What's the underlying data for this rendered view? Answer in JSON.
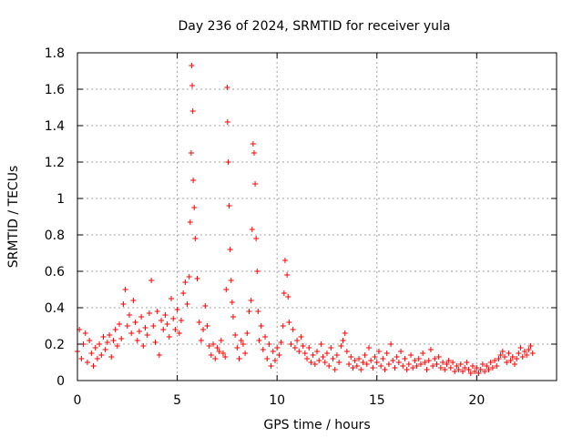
{
  "chart_data": {
    "type": "scatter",
    "title": "Day 236 of 2024, SRMTID for receiver yula",
    "xlabel": "GPS time / hours",
    "ylabel": "SRMTID / TECUs",
    "xlim": [
      0,
      24
    ],
    "ylim": [
      0,
      1.8
    ],
    "xticks": [
      0,
      5,
      10,
      15,
      20
    ],
    "xtick_labels": [
      "0",
      "5",
      "10",
      "15",
      "20"
    ],
    "yticks": [
      0,
      0.2,
      0.4,
      0.6,
      0.8,
      1.0,
      1.2,
      1.4,
      1.6,
      1.8
    ],
    "ytick_labels": [
      "0",
      "0.2",
      "0.4",
      "0.6",
      "0.8",
      "1",
      "1.2",
      "1.4",
      "1.6",
      "1.8"
    ],
    "grid": true,
    "marker": "+",
    "color": "#ff0000",
    "series": [
      {
        "name": "SRMTID",
        "points": [
          [
            0.0,
            0.16
          ],
          [
            0.1,
            0.28
          ],
          [
            0.2,
            0.12
          ],
          [
            0.3,
            0.2
          ],
          [
            0.4,
            0.26
          ],
          [
            0.5,
            0.1
          ],
          [
            0.6,
            0.22
          ],
          [
            0.7,
            0.15
          ],
          [
            0.8,
            0.08
          ],
          [
            0.9,
            0.18
          ],
          [
            1.0,
            0.12
          ],
          [
            1.1,
            0.2
          ],
          [
            1.2,
            0.14
          ],
          [
            1.3,
            0.24
          ],
          [
            1.4,
            0.17
          ],
          [
            1.5,
            0.21
          ],
          [
            1.6,
            0.25
          ],
          [
            1.7,
            0.13
          ],
          [
            1.8,
            0.22
          ],
          [
            1.9,
            0.28
          ],
          [
            2.0,
            0.19
          ],
          [
            2.1,
            0.31
          ],
          [
            2.2,
            0.23
          ],
          [
            2.3,
            0.42
          ],
          [
            2.4,
            0.5
          ],
          [
            2.5,
            0.3
          ],
          [
            2.6,
            0.36
          ],
          [
            2.7,
            0.26
          ],
          [
            2.8,
            0.44
          ],
          [
            2.9,
            0.32
          ],
          [
            3.0,
            0.22
          ],
          [
            3.1,
            0.27
          ],
          [
            3.2,
            0.35
          ],
          [
            3.3,
            0.19
          ],
          [
            3.4,
            0.29
          ],
          [
            3.5,
            0.25
          ],
          [
            3.6,
            0.37
          ],
          [
            3.7,
            0.55
          ],
          [
            3.8,
            0.3
          ],
          [
            3.9,
            0.21
          ],
          [
            4.0,
            0.38
          ],
          [
            4.1,
            0.14
          ],
          [
            4.2,
            0.33
          ],
          [
            4.3,
            0.28
          ],
          [
            4.4,
            0.36
          ],
          [
            4.5,
            0.31
          ],
          [
            4.6,
            0.24
          ],
          [
            4.7,
            0.45
          ],
          [
            4.8,
            0.34
          ],
          [
            4.9,
            0.28
          ],
          [
            5.0,
            0.39
          ],
          [
            5.1,
            0.26
          ],
          [
            5.2,
            0.33
          ],
          [
            5.3,
            0.48
          ],
          [
            5.4,
            0.54
          ],
          [
            5.5,
            0.42
          ],
          [
            5.6,
            0.57
          ],
          [
            5.65,
            0.87
          ],
          [
            5.7,
            1.25
          ],
          [
            5.72,
            1.73
          ],
          [
            5.75,
            1.62
          ],
          [
            5.78,
            1.48
          ],
          [
            5.8,
            1.1
          ],
          [
            5.85,
            0.95
          ],
          [
            5.9,
            0.78
          ],
          [
            6.0,
            0.56
          ],
          [
            6.1,
            0.32
          ],
          [
            6.2,
            0.22
          ],
          [
            6.3,
            0.28
          ],
          [
            6.4,
            0.41
          ],
          [
            6.5,
            0.3
          ],
          [
            6.6,
            0.19
          ],
          [
            6.7,
            0.14
          ],
          [
            6.8,
            0.2
          ],
          [
            6.9,
            0.12
          ],
          [
            7.0,
            0.18
          ],
          [
            7.1,
            0.16
          ],
          [
            7.2,
            0.22
          ],
          [
            7.3,
            0.15
          ],
          [
            7.4,
            0.13
          ],
          [
            7.45,
            0.5
          ],
          [
            7.5,
            1.61
          ],
          [
            7.52,
            1.42
          ],
          [
            7.55,
            1.2
          ],
          [
            7.6,
            0.96
          ],
          [
            7.65,
            0.72
          ],
          [
            7.7,
            0.55
          ],
          [
            7.75,
            0.43
          ],
          [
            7.8,
            0.35
          ],
          [
            7.9,
            0.25
          ],
          [
            8.0,
            0.18
          ],
          [
            8.1,
            0.12
          ],
          [
            8.2,
            0.22
          ],
          [
            8.3,
            0.2
          ],
          [
            8.4,
            0.15
          ],
          [
            8.5,
            0.26
          ],
          [
            8.6,
            0.38
          ],
          [
            8.7,
            0.44
          ],
          [
            8.75,
            0.83
          ],
          [
            8.8,
            1.3
          ],
          [
            8.85,
            1.25
          ],
          [
            8.9,
            1.08
          ],
          [
            8.95,
            0.78
          ],
          [
            9.0,
            0.6
          ],
          [
            9.05,
            0.38
          ],
          [
            9.1,
            0.22
          ],
          [
            9.2,
            0.3
          ],
          [
            9.3,
            0.17
          ],
          [
            9.4,
            0.24
          ],
          [
            9.5,
            0.12
          ],
          [
            9.6,
            0.2
          ],
          [
            9.7,
            0.08
          ],
          [
            9.8,
            0.16
          ],
          [
            9.9,
            0.11
          ],
          [
            10.0,
            0.18
          ],
          [
            10.1,
            0.14
          ],
          [
            10.2,
            0.21
          ],
          [
            10.3,
            0.3
          ],
          [
            10.35,
            0.48
          ],
          [
            10.4,
            0.66
          ],
          [
            10.5,
            0.58
          ],
          [
            10.55,
            0.46
          ],
          [
            10.6,
            0.32
          ],
          [
            10.7,
            0.2
          ],
          [
            10.8,
            0.28
          ],
          [
            10.9,
            0.18
          ],
          [
            11.0,
            0.22
          ],
          [
            11.1,
            0.16
          ],
          [
            11.2,
            0.24
          ],
          [
            11.3,
            0.19
          ],
          [
            11.4,
            0.15
          ],
          [
            11.5,
            0.12
          ],
          [
            11.6,
            0.18
          ],
          [
            11.7,
            0.1
          ],
          [
            11.8,
            0.14
          ],
          [
            11.9,
            0.09
          ],
          [
            12.0,
            0.16
          ],
          [
            12.1,
            0.11
          ],
          [
            12.2,
            0.2
          ],
          [
            12.3,
            0.13
          ],
          [
            12.4,
            0.1
          ],
          [
            12.5,
            0.15
          ],
          [
            12.6,
            0.08
          ],
          [
            12.7,
            0.18
          ],
          [
            12.8,
            0.12
          ],
          [
            12.9,
            0.06
          ],
          [
            13.0,
            0.14
          ],
          [
            13.1,
            0.1
          ],
          [
            13.2,
            0.19
          ],
          [
            13.3,
            0.22
          ],
          [
            13.4,
            0.26
          ],
          [
            13.5,
            0.16
          ],
          [
            13.6,
            0.09
          ],
          [
            13.7,
            0.13
          ],
          [
            13.8,
            0.07
          ],
          [
            13.9,
            0.11
          ],
          [
            14.0,
            0.08
          ],
          [
            14.1,
            0.12
          ],
          [
            14.2,
            0.06
          ],
          [
            14.3,
            0.1
          ],
          [
            14.4,
            0.14
          ],
          [
            14.5,
            0.09
          ],
          [
            14.6,
            0.18
          ],
          [
            14.7,
            0.11
          ],
          [
            14.8,
            0.07
          ],
          [
            14.9,
            0.13
          ],
          [
            15.0,
            0.1
          ],
          [
            15.1,
            0.16
          ],
          [
            15.2,
            0.08
          ],
          [
            15.3,
            0.12
          ],
          [
            15.4,
            0.06
          ],
          [
            15.5,
            0.15
          ],
          [
            15.6,
            0.09
          ],
          [
            15.7,
            0.2
          ],
          [
            15.8,
            0.11
          ],
          [
            15.9,
            0.07
          ],
          [
            16.0,
            0.13
          ],
          [
            16.1,
            0.1
          ],
          [
            16.2,
            0.16
          ],
          [
            16.3,
            0.08
          ],
          [
            16.4,
            0.12
          ],
          [
            16.5,
            0.06
          ],
          [
            16.6,
            0.09
          ],
          [
            16.7,
            0.14
          ],
          [
            16.8,
            0.07
          ],
          [
            16.9,
            0.11
          ],
          [
            17.0,
            0.08
          ],
          [
            17.1,
            0.12
          ],
          [
            17.2,
            0.09
          ],
          [
            17.3,
            0.15
          ],
          [
            17.4,
            0.1
          ],
          [
            17.5,
            0.06
          ],
          [
            17.6,
            0.11
          ],
          [
            17.7,
            0.17
          ],
          [
            17.8,
            0.08
          ],
          [
            17.9,
            0.12
          ],
          [
            18.0,
            0.09
          ],
          [
            18.1,
            0.13
          ],
          [
            18.2,
            0.07
          ],
          [
            18.3,
            0.1
          ],
          [
            18.4,
            0.06
          ],
          [
            18.5,
            0.09
          ],
          [
            18.6,
            0.11
          ],
          [
            18.7,
            0.07
          ],
          [
            18.8,
            0.1
          ],
          [
            18.9,
            0.05
          ],
          [
            19.0,
            0.08
          ],
          [
            19.1,
            0.06
          ],
          [
            19.2,
            0.09
          ],
          [
            19.3,
            0.05
          ],
          [
            19.4,
            0.07
          ],
          [
            19.5,
            0.1
          ],
          [
            19.6,
            0.06
          ],
          [
            19.7,
            0.04
          ],
          [
            19.8,
            0.08
          ],
          [
            19.9,
            0.05
          ],
          [
            20.0,
            0.07
          ],
          [
            20.1,
            0.04
          ],
          [
            20.2,
            0.06
          ],
          [
            20.3,
            0.09
          ],
          [
            20.4,
            0.05
          ],
          [
            20.5,
            0.08
          ],
          [
            20.6,
            0.06
          ],
          [
            20.7,
            0.1
          ],
          [
            20.8,
            0.07
          ],
          [
            20.9,
            0.11
          ],
          [
            21.0,
            0.08
          ],
          [
            21.1,
            0.12
          ],
          [
            21.2,
            0.14
          ],
          [
            21.3,
            0.16
          ],
          [
            21.4,
            0.13
          ],
          [
            21.5,
            0.1
          ],
          [
            21.6,
            0.15
          ],
          [
            21.7,
            0.11
          ],
          [
            21.8,
            0.13
          ],
          [
            21.9,
            0.09
          ],
          [
            22.0,
            0.12
          ],
          [
            22.1,
            0.15
          ],
          [
            22.2,
            0.18
          ],
          [
            22.3,
            0.13
          ],
          [
            22.4,
            0.16
          ],
          [
            22.5,
            0.14
          ],
          [
            22.6,
            0.17
          ],
          [
            22.7,
            0.19
          ],
          [
            22.8,
            0.15
          ]
        ]
      }
    ]
  }
}
